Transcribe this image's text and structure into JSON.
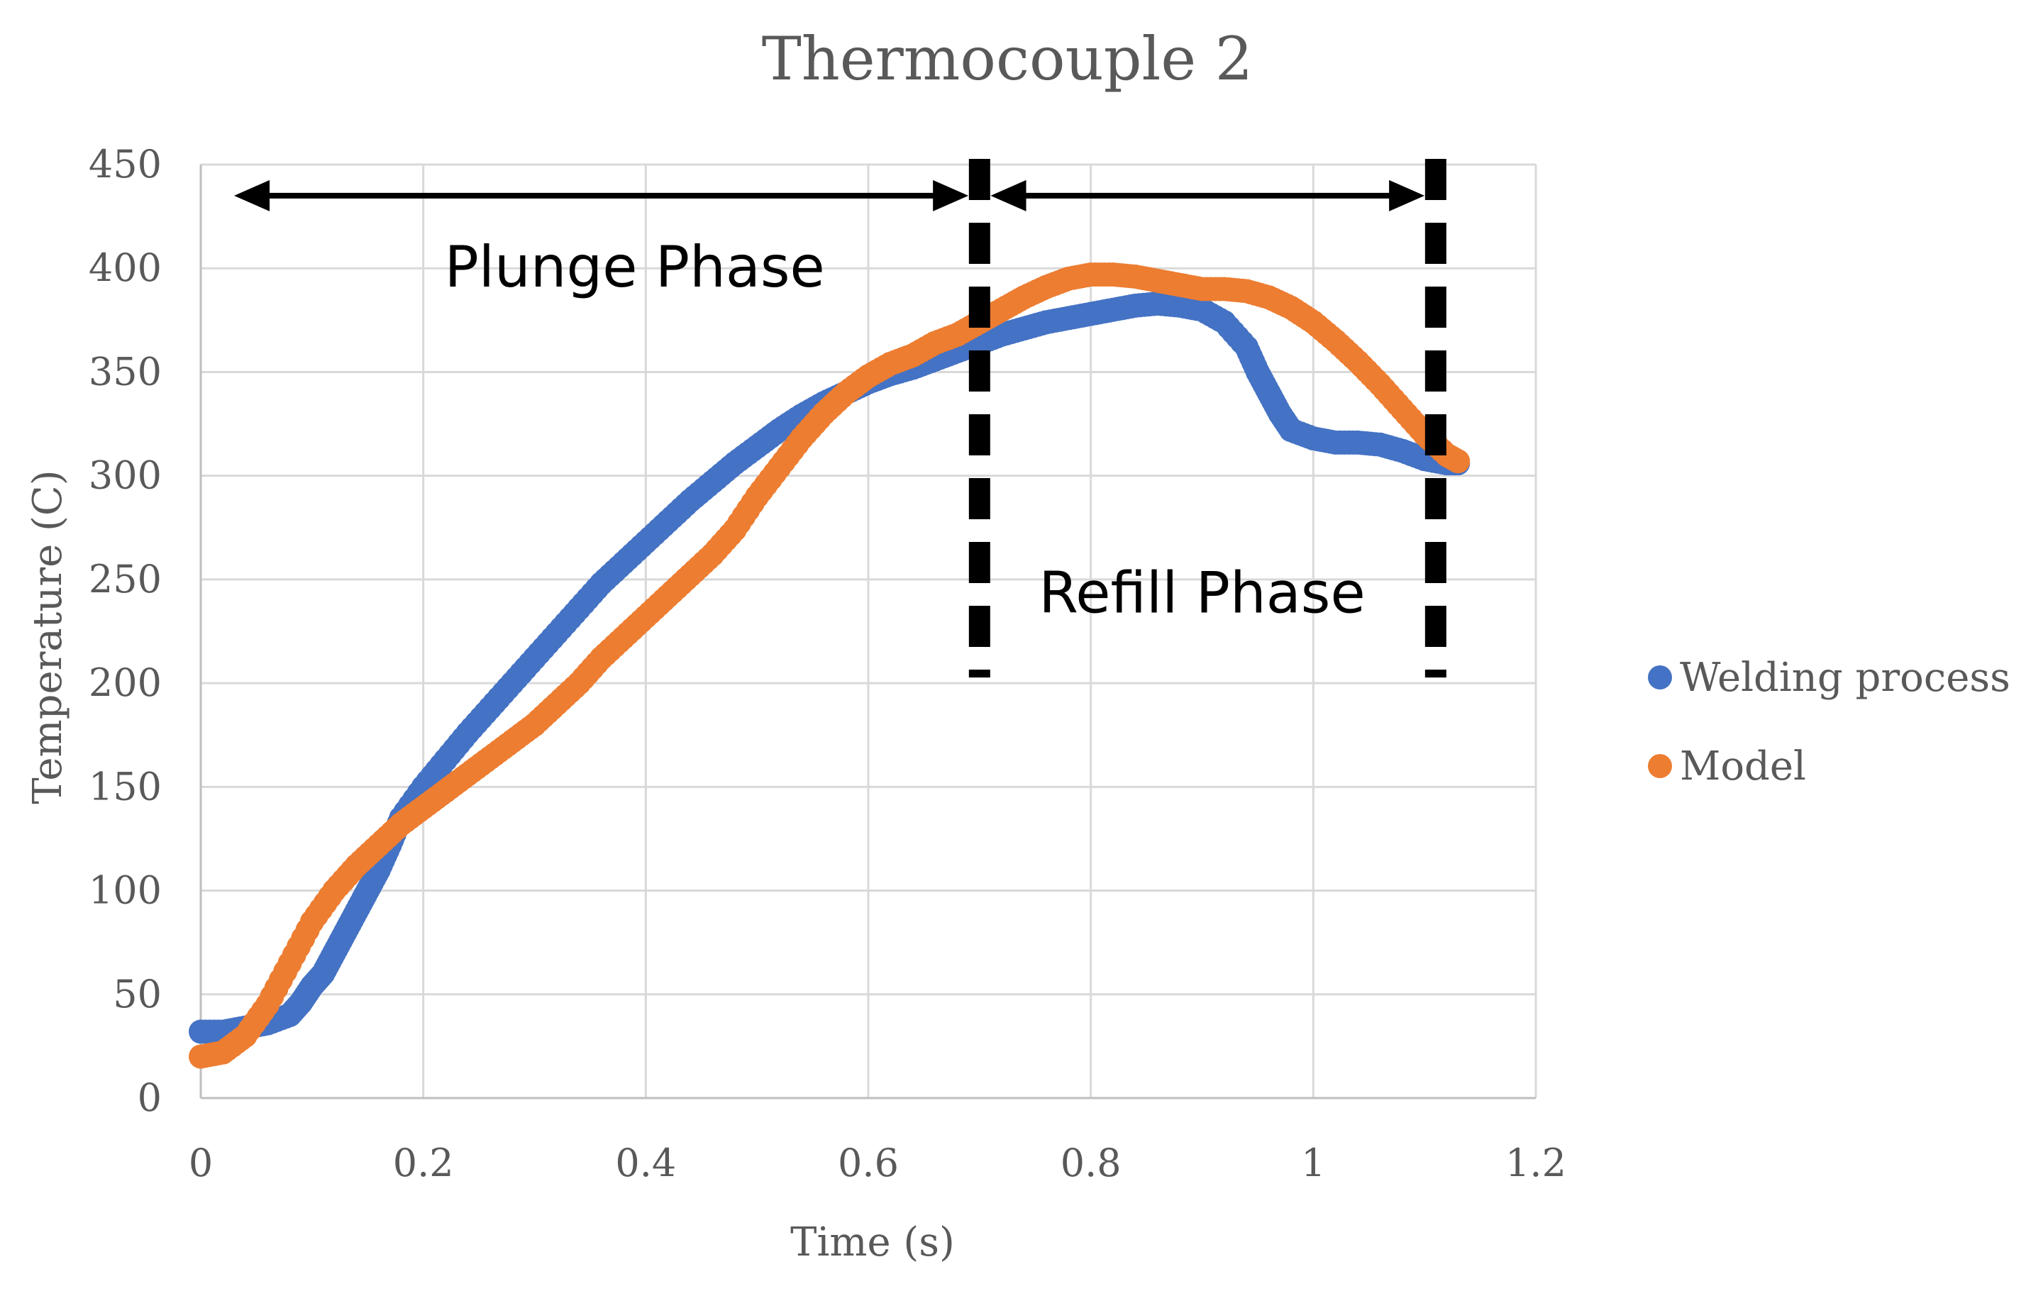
{
  "chart_data": {
    "type": "scatter",
    "title": "Thermocouple 2",
    "xlabel": "Time (s)",
    "ylabel": "Temperature (C)",
    "xlim": [
      0,
      1.2
    ],
    "ylim": [
      0,
      450
    ],
    "x_ticks": [
      "0",
      "0.2",
      "0.4",
      "0.6",
      "0.8",
      "1",
      "1.2"
    ],
    "x_tick_values": [
      0,
      0.2,
      0.4,
      0.6,
      0.8,
      1.0,
      1.2
    ],
    "y_ticks": [
      "0",
      "50",
      "100",
      "150",
      "200",
      "250",
      "300",
      "350",
      "400",
      "450"
    ],
    "y_tick_values": [
      0,
      50,
      100,
      150,
      200,
      250,
      300,
      350,
      400,
      450
    ],
    "grid": true,
    "legend_position": "right",
    "series": [
      {
        "name": "Welding process",
        "color": "#4472c4",
        "points": [
          [
            0,
            32
          ],
          [
            0.02,
            32
          ],
          [
            0.04,
            34
          ],
          [
            0.06,
            36
          ],
          [
            0.08,
            40
          ],
          [
            0.09,
            46
          ],
          [
            0.1,
            54
          ],
          [
            0.11,
            60
          ],
          [
            0.12,
            70
          ],
          [
            0.13,
            80
          ],
          [
            0.14,
            90
          ],
          [
            0.15,
            100
          ],
          [
            0.16,
            110
          ],
          [
            0.17,
            122
          ],
          [
            0.18,
            135
          ],
          [
            0.2,
            150
          ],
          [
            0.22,
            163
          ],
          [
            0.24,
            176
          ],
          [
            0.26,
            188
          ],
          [
            0.28,
            200
          ],
          [
            0.3,
            212
          ],
          [
            0.32,
            224
          ],
          [
            0.34,
            236
          ],
          [
            0.36,
            248
          ],
          [
            0.38,
            258
          ],
          [
            0.4,
            268
          ],
          [
            0.42,
            278
          ],
          [
            0.44,
            288
          ],
          [
            0.46,
            297
          ],
          [
            0.48,
            306
          ],
          [
            0.5,
            314
          ],
          [
            0.52,
            322
          ],
          [
            0.54,
            329
          ],
          [
            0.56,
            335
          ],
          [
            0.58,
            340
          ],
          [
            0.6,
            345
          ],
          [
            0.62,
            349
          ],
          [
            0.64,
            352
          ],
          [
            0.66,
            356
          ],
          [
            0.68,
            360
          ],
          [
            0.7,
            364
          ],
          [
            0.72,
            368
          ],
          [
            0.74,
            371
          ],
          [
            0.76,
            374
          ],
          [
            0.78,
            376
          ],
          [
            0.8,
            378
          ],
          [
            0.82,
            380
          ],
          [
            0.84,
            382
          ],
          [
            0.86,
            383
          ],
          [
            0.88,
            382
          ],
          [
            0.9,
            380
          ],
          [
            0.92,
            374
          ],
          [
            0.94,
            362
          ],
          [
            0.95,
            350
          ],
          [
            0.96,
            340
          ],
          [
            0.97,
            330
          ],
          [
            0.98,
            322
          ],
          [
            1.0,
            318
          ],
          [
            1.02,
            316
          ],
          [
            1.04,
            316
          ],
          [
            1.06,
            315
          ],
          [
            1.08,
            312
          ],
          [
            1.1,
            308
          ],
          [
            1.12,
            306
          ],
          [
            1.13,
            306
          ]
        ]
      },
      {
        "name": "Model",
        "color": "#ed7d31",
        "points": [
          [
            0,
            20
          ],
          [
            0.02,
            22
          ],
          [
            0.04,
            30
          ],
          [
            0.06,
            45
          ],
          [
            0.08,
            65
          ],
          [
            0.1,
            85
          ],
          [
            0.12,
            100
          ],
          [
            0.14,
            112
          ],
          [
            0.16,
            122
          ],
          [
            0.18,
            132
          ],
          [
            0.2,
            140
          ],
          [
            0.22,
            148
          ],
          [
            0.24,
            156
          ],
          [
            0.26,
            164
          ],
          [
            0.28,
            172
          ],
          [
            0.3,
            180
          ],
          [
            0.32,
            190
          ],
          [
            0.34,
            200
          ],
          [
            0.36,
            212
          ],
          [
            0.38,
            222
          ],
          [
            0.4,
            232
          ],
          [
            0.42,
            242
          ],
          [
            0.44,
            252
          ],
          [
            0.46,
            262
          ],
          [
            0.48,
            274
          ],
          [
            0.5,
            290
          ],
          [
            0.52,
            304
          ],
          [
            0.54,
            318
          ],
          [
            0.56,
            330
          ],
          [
            0.58,
            340
          ],
          [
            0.6,
            348
          ],
          [
            0.62,
            354
          ],
          [
            0.64,
            358
          ],
          [
            0.66,
            364
          ],
          [
            0.68,
            368
          ],
          [
            0.7,
            374
          ],
          [
            0.72,
            380
          ],
          [
            0.74,
            386
          ],
          [
            0.76,
            391
          ],
          [
            0.78,
            395
          ],
          [
            0.8,
            397
          ],
          [
            0.82,
            397
          ],
          [
            0.84,
            396
          ],
          [
            0.86,
            394
          ],
          [
            0.88,
            392
          ],
          [
            0.9,
            390
          ],
          [
            0.92,
            390
          ],
          [
            0.94,
            389
          ],
          [
            0.96,
            386
          ],
          [
            0.98,
            381
          ],
          [
            1.0,
            374
          ],
          [
            1.02,
            365
          ],
          [
            1.04,
            355
          ],
          [
            1.06,
            344
          ],
          [
            1.08,
            332
          ],
          [
            1.1,
            320
          ],
          [
            1.12,
            310
          ],
          [
            1.13,
            307
          ]
        ]
      }
    ],
    "annotations": [
      {
        "text": "Plunge Phase",
        "x": 0.39,
        "y": 400
      },
      {
        "text": "Refill Phase",
        "x": 0.9,
        "y": 243
      }
    ],
    "phase_markers": {
      "x_values": [
        0.7,
        1.11
      ],
      "y_range": [
        200,
        450
      ]
    },
    "phase_arrows": [
      {
        "from": 0.03,
        "to": 0.69,
        "y": 435
      },
      {
        "from": 0.71,
        "to": 1.1,
        "y": 435
      }
    ]
  }
}
